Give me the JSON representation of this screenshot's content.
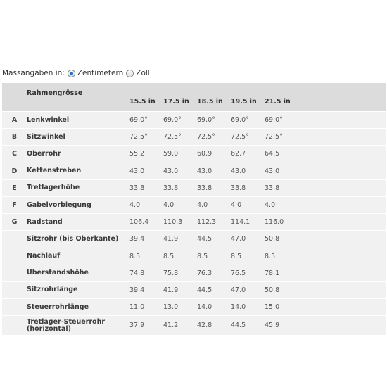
{
  "units": {
    "label": "Massangaben in:",
    "options": [
      {
        "label": "Zentimetern",
        "checked": true
      },
      {
        "label": "Zoll",
        "checked": false
      }
    ]
  },
  "table": {
    "header_label": "Rahmengrösse",
    "sizes": [
      "15.5 in",
      "17.5 in",
      "18.5 in",
      "19.5 in",
      "21.5 in"
    ],
    "rows": [
      {
        "letter": "A",
        "name": "Lenkwinkel",
        "values": [
          "69.0°",
          "69.0°",
          "69.0°",
          "69.0°",
          "69.0°"
        ]
      },
      {
        "letter": "B",
        "name": "Sitzwinkel",
        "values": [
          "72.5°",
          "72.5°",
          "72.5°",
          "72.5°",
          "72.5°"
        ]
      },
      {
        "letter": "C",
        "name": "Oberrohr",
        "values": [
          "55.2",
          "59.0",
          "60.9",
          "62.7",
          "64.5"
        ]
      },
      {
        "letter": "D",
        "name": "Kettenstreben",
        "values": [
          "43.0",
          "43.0",
          "43.0",
          "43.0",
          "43.0"
        ]
      },
      {
        "letter": "E",
        "name": "Tretlagerhöhe",
        "values": [
          "33.8",
          "33.8",
          "33.8",
          "33.8",
          "33.8"
        ]
      },
      {
        "letter": "F",
        "name": "Gabelvorbiegung",
        "values": [
          "4.0",
          "4.0",
          "4.0",
          "4.0",
          "4.0"
        ]
      },
      {
        "letter": "G",
        "name": "Radstand",
        "values": [
          "106.4",
          "110.3",
          "112.3",
          "114.1",
          "116.0"
        ]
      },
      {
        "letter": "",
        "name": "Sitzrohr (bis Oberkante)",
        "values": [
          "39.4",
          "41.9",
          "44.5",
          "47.0",
          "50.8"
        ]
      },
      {
        "letter": "",
        "name": "Nachlauf",
        "values": [
          "8.5",
          "8.5",
          "8.5",
          "8.5",
          "8.5"
        ]
      },
      {
        "letter": "",
        "name": "Uberstandshöhe",
        "values": [
          "74.8",
          "75.8",
          "76.3",
          "76.5",
          "78.1"
        ]
      },
      {
        "letter": "",
        "name": "Sitzrohrlänge",
        "values": [
          "39.4",
          "41.9",
          "44.5",
          "47.0",
          "50.8"
        ]
      },
      {
        "letter": "",
        "name": "Steuerrohrlänge",
        "values": [
          "11.0",
          "13.0",
          "14.0",
          "14.0",
          "15.0"
        ]
      },
      {
        "letter": "",
        "name": "Tretlager-Steuerrohr (horizontal)",
        "values": [
          "37.9",
          "41.2",
          "42.8",
          "44.5",
          "45.9"
        ]
      }
    ]
  }
}
